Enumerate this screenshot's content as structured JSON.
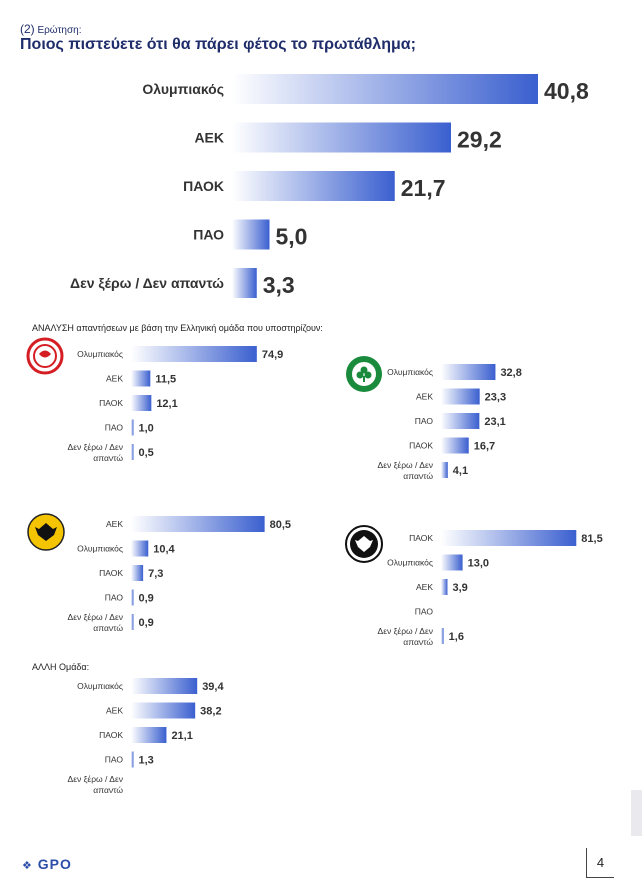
{
  "question": {
    "number": "(2)",
    "prefix": "Ερώτηση:",
    "title": "Ποιος πιστεύετε ότι θα πάρει φέτος το πρωτάθλημα;"
  },
  "analysis_label": "ΑΝΑΛΥΣΗ απαντήσεων με βάση την Ελληνική ομάδα που υποστηρίζουν:",
  "other_team_label": "ΑΛΛΗ Ομάδα:",
  "footer": {
    "brand": "GPO",
    "page": "4"
  },
  "colors": {
    "title": "#1f2d6b",
    "bar_dark": "#3a5fcf",
    "bar_light": "#ffffff"
  },
  "chart_data": [
    {
      "id": "main",
      "type": "bar",
      "orientation": "horizontal",
      "title": "Ποιος πιστεύετε ότι θα πάρει φέτος το πρωτάθλημα;",
      "categories": [
        "Ολυμπιακός",
        "ΑΕΚ",
        "ΠΑΟΚ",
        "ΠΑΟ",
        "Δεν ξέρω / Δεν απαντώ"
      ],
      "values": [
        40.8,
        29.2,
        21.7,
        5.0,
        3.3
      ],
      "value_labels": [
        "40,8",
        "29,2",
        "21,7",
        "5,0",
        "3,3"
      ]
    },
    {
      "id": "olympiacos_fans",
      "type": "bar",
      "orientation": "horizontal",
      "team_logo": "olympiacos-logo",
      "categories": [
        "Ολυμπιακός",
        "ΑΕΚ",
        "ΠΑΟΚ",
        "ΠΑΟ",
        "Δεν ξέρω / Δεν απαντώ"
      ],
      "category_lines": [
        [
          "Ολυμπιακός"
        ],
        [
          "ΑΕΚ"
        ],
        [
          "ΠΑΟΚ"
        ],
        [
          "ΠΑΟ"
        ],
        [
          "Δεν ξέρω / Δεν",
          "απαντώ"
        ]
      ],
      "values": [
        74.9,
        11.5,
        12.1,
        1.0,
        0.5
      ],
      "value_labels": [
        "74,9",
        "11,5",
        "12,1",
        "1,0",
        "0,5"
      ]
    },
    {
      "id": "pao_fans",
      "type": "bar",
      "orientation": "horizontal",
      "team_logo": "panathinaikos-logo",
      "categories": [
        "Ολυμπιακός",
        "ΑΕΚ",
        "ΠΑΟ",
        "ΠΑΟΚ",
        "Δεν ξέρω / Δεν απαντώ"
      ],
      "category_lines": [
        [
          "Ολυμπιακός"
        ],
        [
          "ΑΕΚ"
        ],
        [
          "ΠΑΟ"
        ],
        [
          "ΠΑΟΚ"
        ],
        [
          "Δεν ξέρω / Δεν",
          "απαντώ"
        ]
      ],
      "values": [
        32.8,
        23.3,
        23.1,
        16.7,
        4.1
      ],
      "value_labels": [
        "32,8",
        "23,3",
        "23,1",
        "16,7",
        "4,1"
      ]
    },
    {
      "id": "aek_fans",
      "type": "bar",
      "orientation": "horizontal",
      "team_logo": "aek-logo",
      "categories": [
        "ΑΕΚ",
        "Ολυμπιακός",
        "ΠΑΟΚ",
        "ΠΑΟ",
        "Δεν ξέρω / Δεν απαντώ"
      ],
      "category_lines": [
        [
          "ΑΕΚ"
        ],
        [
          "Ολυμπιακός"
        ],
        [
          "ΠΑΟΚ"
        ],
        [
          "ΠΑΟ"
        ],
        [
          "Δεν ξέρω / Δεν",
          "απαντώ"
        ]
      ],
      "values": [
        80.5,
        10.4,
        7.3,
        0.9,
        0.9
      ],
      "value_labels": [
        "80,5",
        "10,4",
        "7,3",
        "0,9",
        "0,9"
      ]
    },
    {
      "id": "paok_fans",
      "type": "bar",
      "orientation": "horizontal",
      "team_logo": "paok-logo",
      "categories": [
        "ΠΑΟΚ",
        "Ολυμπιακός",
        "ΑΕΚ",
        "ΠΑΟ",
        "Δεν ξέρω / Δεν απαντώ"
      ],
      "category_lines": [
        [
          "ΠΑΟΚ"
        ],
        [
          "Ολυμπιακός"
        ],
        [
          "ΑΕΚ"
        ],
        [
          "ΠΑΟ"
        ],
        [
          "Δεν ξέρω / Δεν",
          "απαντώ"
        ]
      ],
      "values": [
        81.5,
        13.0,
        3.9,
        null,
        1.6
      ],
      "value_labels": [
        "81,5",
        "13,0",
        "3,9",
        "",
        "1,6"
      ]
    },
    {
      "id": "other_team_fans",
      "type": "bar",
      "orientation": "horizontal",
      "categories": [
        "Ολυμπιακός",
        "ΑΕΚ",
        "ΠΑΟΚ",
        "ΠΑΟ",
        "Δεν ξέρω / Δεν απαντώ"
      ],
      "category_lines": [
        [
          "Ολυμπιακός"
        ],
        [
          "ΑΕΚ"
        ],
        [
          "ΠΑΟΚ"
        ],
        [
          "ΠΑΟ"
        ],
        [
          "Δεν ξέρω / Δεν",
          "απαντώ"
        ]
      ],
      "values": [
        39.4,
        38.2,
        21.1,
        1.3,
        null
      ],
      "value_labels": [
        "39,4",
        "38,2",
        "21,1",
        "1,3",
        ""
      ]
    }
  ]
}
